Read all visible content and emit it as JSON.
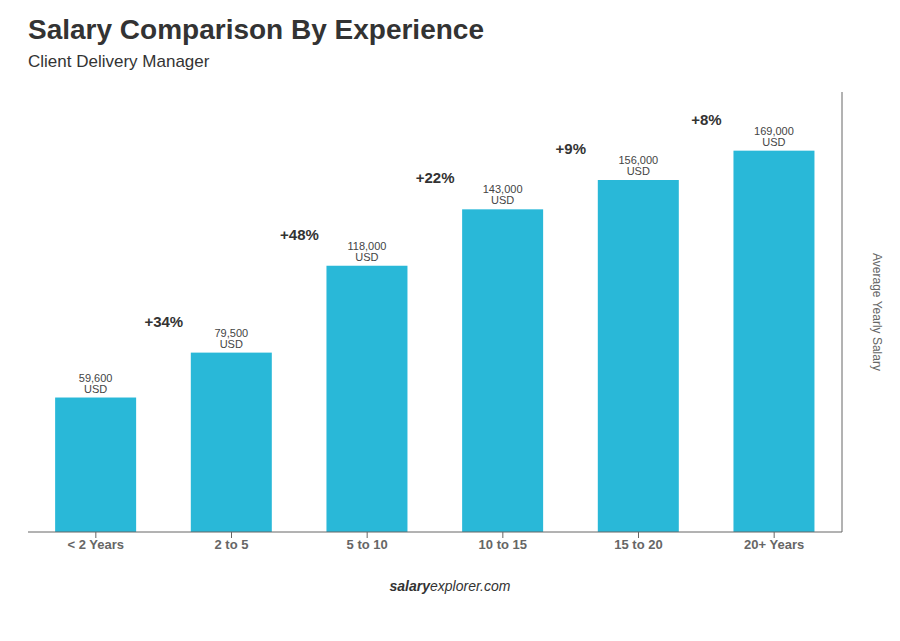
{
  "chart_data": {
    "type": "bar",
    "title": "Salary Comparison By Experience",
    "subtitle": "Client Delivery Manager",
    "categories": [
      "< 2 Years",
      "2 to 5",
      "5 to 10",
      "10 to 15",
      "15 to 20",
      "20+ Years"
    ],
    "values": [
      59600,
      79500,
      118000,
      143000,
      156000,
      169000
    ],
    "value_labels": [
      "59,600 USD",
      "79,500 USD",
      "118,000 USD",
      "143,000 USD",
      "156,000 USD",
      "169,000 USD"
    ],
    "annotations": [
      "+34%",
      "+48%",
      "+22%",
      "+9%",
      "+8%"
    ],
    "watermark": [
      "salary",
      "explorer.com"
    ],
    "ylabel": "Average Yearly Salary",
    "color": "#29b8d8",
    "ylim": [
      0,
      195000
    ],
    "tick_labels": "x",
    "grid": false,
    "data_labels": true
  }
}
